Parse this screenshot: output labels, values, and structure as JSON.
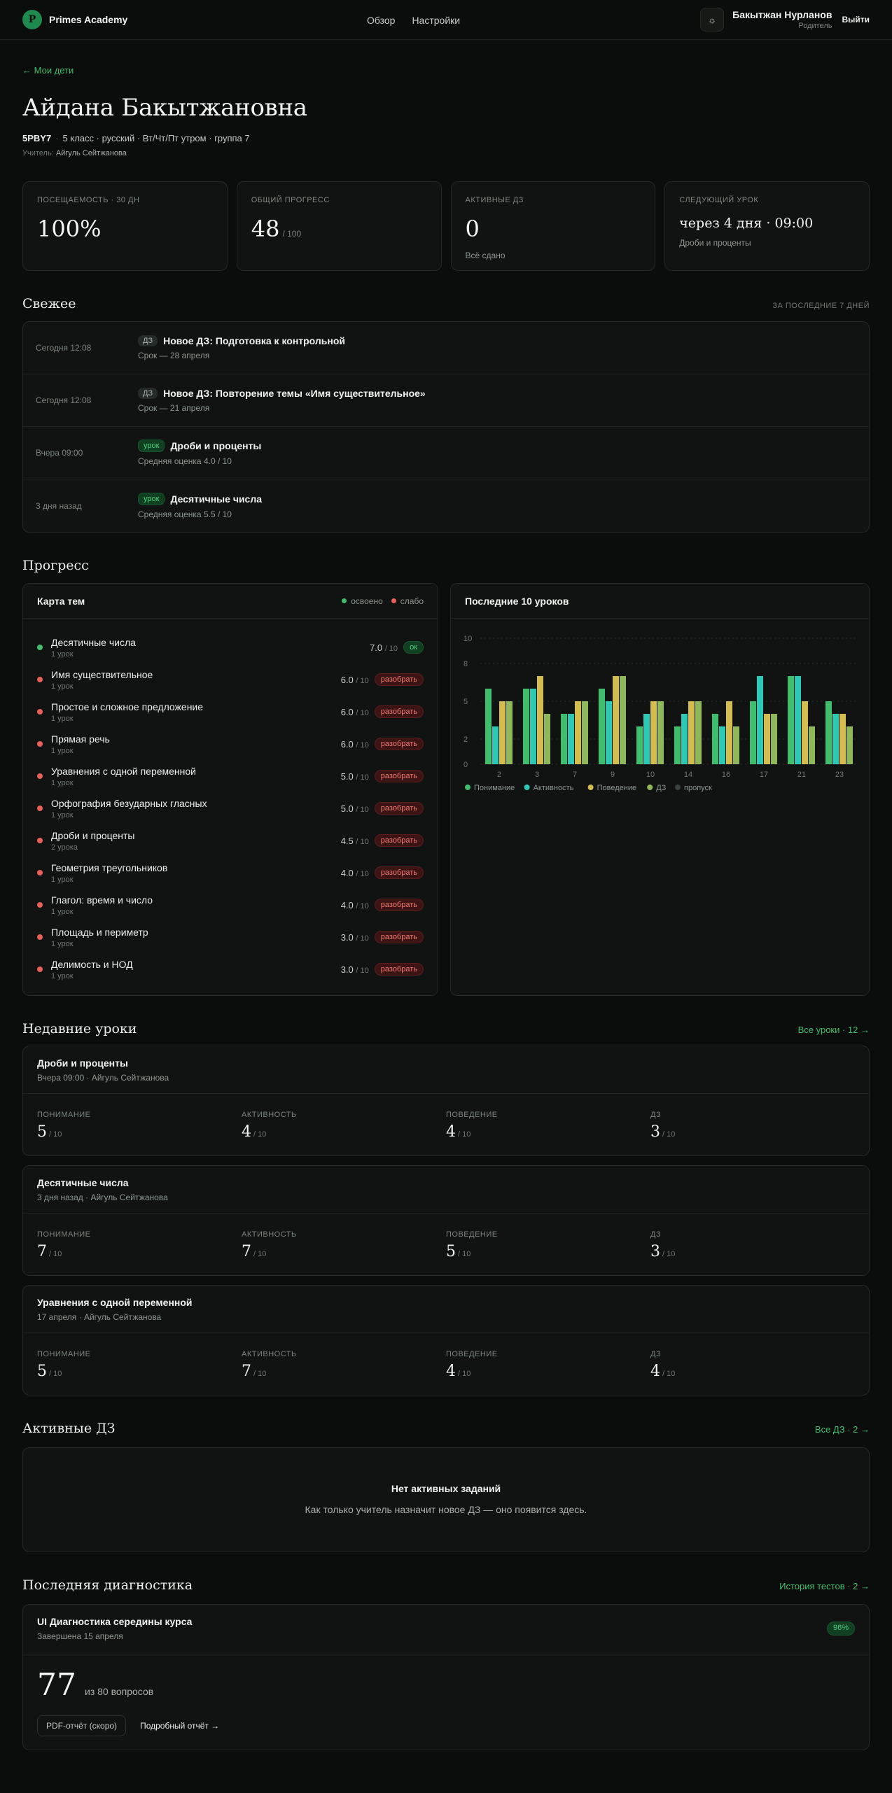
{
  "header": {
    "brand": "Primes Academy",
    "brand_initial": "P",
    "nav": [
      "Обзор",
      "Настройки"
    ],
    "user_name": "Бакытжан Нурланов",
    "user_role": "Родитель",
    "logout": "Выйти",
    "theme_icon": "sun-icon"
  },
  "back_link": "← Мои дети",
  "student": {
    "name": "Айдана Бакытжановна",
    "code": "5PBY7",
    "info": "5 класс · русский · Вт/Чт/Пт утром · группа 7",
    "teacher_label": "Учитель:",
    "teacher": "Айгуль Сейтжанова"
  },
  "stats": [
    {
      "label": "ПОСЕЩАЕМОСТЬ · 30 ДН",
      "value": "100%",
      "suffix": "",
      "sub": ""
    },
    {
      "label": "ОБЩИЙ ПРОГРЕСС",
      "value": "48",
      "suffix": "/ 100",
      "sub": ""
    },
    {
      "label": "АКТИВНЫЕ ДЗ",
      "value": "0",
      "suffix": "",
      "sub": "Всё сдано"
    },
    {
      "label": "СЛЕДУЮЩИЙ УРОК",
      "value": "через 4 дня · 09:00",
      "suffix": "",
      "sub": "Дроби и проценты"
    }
  ],
  "fresh": {
    "title": "Свежее",
    "hint": "ЗА ПОСЛЕДНИЕ 7 ДНЕЙ",
    "items": [
      {
        "time": "Сегодня 12:08",
        "tag": "ДЗ",
        "title": "Новое ДЗ: Подготовка к контрольной",
        "sub": "Срок — 28 апреля"
      },
      {
        "time": "Сегодня 12:08",
        "tag": "ДЗ",
        "title": "Новое ДЗ: Повторение темы «Имя существительное»",
        "sub": "Срок — 21 апреля"
      },
      {
        "time": "Вчера 09:00",
        "tag": "урок",
        "title": "Дроби и проценты",
        "sub": "Средняя оценка 4.0 / 10"
      },
      {
        "time": "3 дня назад",
        "tag": "урок",
        "title": "Десятичные числа",
        "sub": "Средняя оценка 5.5 / 10"
      }
    ]
  },
  "progress": {
    "title": "Прогресс",
    "topic_map": {
      "title": "Карта тем",
      "legend_ok": "освоено",
      "legend_weak": "слабо",
      "topics": [
        {
          "name": "Десятичные числа",
          "sub": "1 урок",
          "score": "7.0",
          "max": "/ 10",
          "status": "ok",
          "badge": "ок"
        },
        {
          "name": "Имя существительное",
          "sub": "1 урок",
          "score": "6.0",
          "max": "/ 10",
          "status": "weak",
          "badge": "разобрать"
        },
        {
          "name": "Простое и сложное предложение",
          "sub": "1 урок",
          "score": "6.0",
          "max": "/ 10",
          "status": "weak",
          "badge": "разобрать"
        },
        {
          "name": "Прямая речь",
          "sub": "1 урок",
          "score": "6.0",
          "max": "/ 10",
          "status": "weak",
          "badge": "разобрать"
        },
        {
          "name": "Уравнения с одной переменной",
          "sub": "1 урок",
          "score": "5.0",
          "max": "/ 10",
          "status": "weak",
          "badge": "разобрать"
        },
        {
          "name": "Орфография безударных гласных",
          "sub": "1 урок",
          "score": "5.0",
          "max": "/ 10",
          "status": "weak",
          "badge": "разобрать"
        },
        {
          "name": "Дроби и проценты",
          "sub": "2 урока",
          "score": "4.5",
          "max": "/ 10",
          "status": "weak",
          "badge": "разобрать"
        },
        {
          "name": "Геометрия треугольников",
          "sub": "1 урок",
          "score": "4.0",
          "max": "/ 10",
          "status": "weak",
          "badge": "разобрать"
        },
        {
          "name": "Глагол: время и число",
          "sub": "1 урок",
          "score": "4.0",
          "max": "/ 10",
          "status": "weak",
          "badge": "разобрать"
        },
        {
          "name": "Площадь и периметр",
          "sub": "1 урок",
          "score": "3.0",
          "max": "/ 10",
          "status": "weak",
          "badge": "разобрать"
        },
        {
          "name": "Делимость и НОД",
          "sub": "1 урок",
          "score": "3.0",
          "max": "/ 10",
          "status": "weak",
          "badge": "разобрать"
        }
      ]
    },
    "chart_title": "Последние 10 уроков"
  },
  "chart_data": {
    "type": "bar",
    "title": "Последние 10 уроков",
    "categories": [
      "2",
      "3",
      "7",
      "9",
      "10",
      "14",
      "16",
      "17",
      "21",
      "23"
    ],
    "y_ticks": [
      0,
      2,
      5,
      8,
      10
    ],
    "ylim": [
      0,
      10
    ],
    "grid": true,
    "legend_position": "bottom-left",
    "series": [
      {
        "name": "Понимание",
        "color": "#3fbf6e",
        "values": [
          6,
          6,
          4,
          6,
          3,
          3,
          4,
          5,
          7,
          5
        ]
      },
      {
        "name": "Активность",
        "color": "#2cc9b7",
        "values": [
          3,
          6,
          4,
          5,
          4,
          4,
          3,
          7,
          7,
          4
        ]
      },
      {
        "name": "Поведение",
        "color": "#d4bc4e",
        "values": [
          5,
          7,
          5,
          7,
          5,
          5,
          5,
          4,
          5,
          4
        ]
      },
      {
        "name": "ДЗ",
        "color": "#8fb85a",
        "values": [
          5,
          4,
          5,
          7,
          5,
          5,
          3,
          4,
          3,
          3
        ]
      },
      {
        "name": "пропуск",
        "color": "#3a423e",
        "values": [
          0,
          0,
          0,
          0,
          0,
          0,
          0,
          0,
          0,
          0
        ]
      }
    ]
  },
  "recent_lessons": {
    "title": "Недавние уроки",
    "link": "Все уроки · 12 →",
    "items": [
      {
        "title": "Дроби и проценты",
        "meta": "Вчера 09:00 · Айгуль Сейтжанова",
        "metrics": [
          {
            "label": "ПОНИМАНИЕ",
            "value": "5",
            "max": "/ 10"
          },
          {
            "label": "АКТИВНОСТЬ",
            "value": "4",
            "max": "/ 10"
          },
          {
            "label": "ПОВЕДЕНИЕ",
            "value": "4",
            "max": "/ 10"
          },
          {
            "label": "ДЗ",
            "value": "3",
            "max": "/ 10"
          }
        ]
      },
      {
        "title": "Десятичные числа",
        "meta": "3 дня назад · Айгуль Сейтжанова",
        "metrics": [
          {
            "label": "ПОНИМАНИЕ",
            "value": "7",
            "max": "/ 10"
          },
          {
            "label": "АКТИВНОСТЬ",
            "value": "7",
            "max": "/ 10"
          },
          {
            "label": "ПОВЕДЕНИЕ",
            "value": "5",
            "max": "/ 10"
          },
          {
            "label": "ДЗ",
            "value": "3",
            "max": "/ 10"
          }
        ]
      },
      {
        "title": "Уравнения с одной переменной",
        "meta": "17 апреля · Айгуль Сейтжанова",
        "metrics": [
          {
            "label": "ПОНИМАНИЕ",
            "value": "5",
            "max": "/ 10"
          },
          {
            "label": "АКТИВНОСТЬ",
            "value": "7",
            "max": "/ 10"
          },
          {
            "label": "ПОВЕДЕНИЕ",
            "value": "4",
            "max": "/ 10"
          },
          {
            "label": "ДЗ",
            "value": "4",
            "max": "/ 10"
          }
        ]
      }
    ]
  },
  "active_hw": {
    "title": "Активные ДЗ",
    "link": "Все ДЗ · 2 →",
    "empty_title": "Нет активных заданий",
    "empty_sub": "Как только учитель назначит новое ДЗ — оно появится здесь."
  },
  "diagnostics": {
    "title": "Последняя диагностика",
    "link": "История тестов · 2 →",
    "test_title": "UI Диагностика середины курса",
    "test_sub": "Завершена 15 апреля",
    "badge": "96%",
    "score": "77",
    "score_sub": "из 80 вопросов",
    "pdf_button": "PDF-отчёт (скоро)",
    "report_link": "Подробный отчёт →"
  }
}
